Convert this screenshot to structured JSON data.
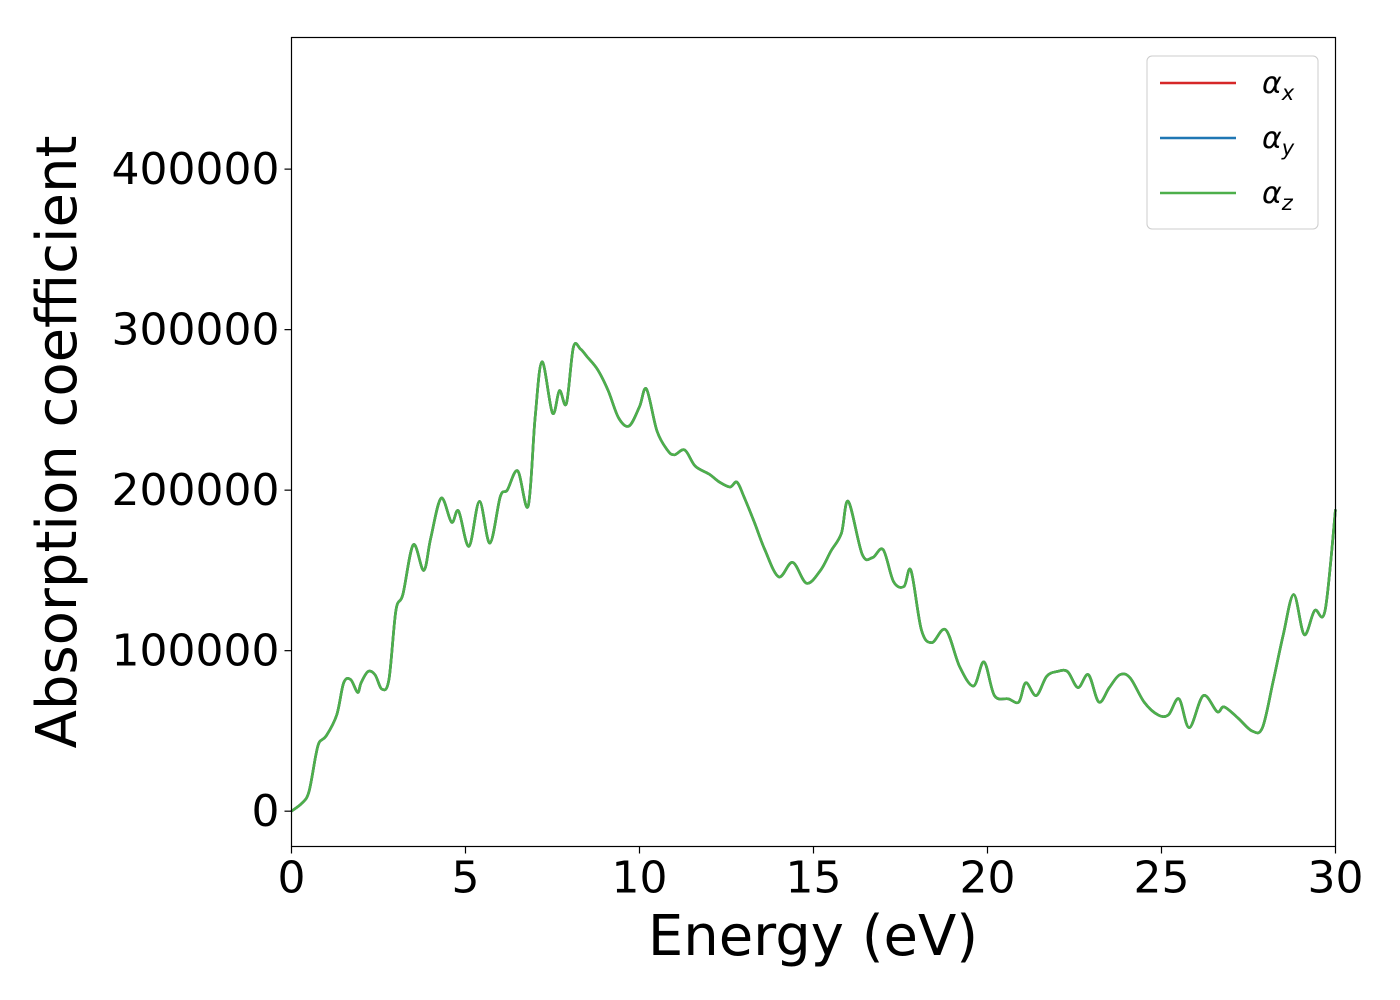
{
  "chart_data": {
    "type": "line",
    "xlabel": "Energy (eV)",
    "ylabel": "Absorption coefficient",
    "xlim": [
      0,
      30
    ],
    "ylim": [
      -22000,
      482000
    ],
    "xticks": [
      0,
      5,
      10,
      15,
      20,
      25,
      30
    ],
    "yticks": [
      0,
      100000,
      200000,
      300000,
      400000
    ],
    "grid": false,
    "legend_position": "top-right",
    "series": [
      {
        "name": "αx",
        "base": "α",
        "sub": "x",
        "color": "#d62728",
        "ref": "shared"
      },
      {
        "name": "αy",
        "base": "α",
        "sub": "y",
        "color": "#1f77b4",
        "ref": "shared"
      },
      {
        "name": "αz",
        "base": "α",
        "sub": "z",
        "color": "#4daf4a",
        "ref": "shared"
      }
    ],
    "shared": {
      "x": [
        0,
        0.3,
        0.5,
        0.7,
        0.8,
        1.0,
        1.3,
        1.5,
        1.7,
        1.9,
        2.0,
        2.2,
        2.4,
        2.6,
        2.8,
        3.0,
        3.2,
        3.5,
        3.8,
        4.0,
        4.3,
        4.6,
        4.8,
        5.1,
        5.4,
        5.7,
        6.0,
        6.2,
        6.5,
        6.8,
        7.0,
        7.2,
        7.5,
        7.7,
        7.9,
        8.1,
        8.3,
        8.5,
        8.8,
        9.1,
        9.4,
        9.7,
        10.0,
        10.2,
        10.5,
        10.8,
        11.0,
        11.3,
        11.6,
        12.0,
        12.3,
        12.6,
        12.8,
        13.0,
        13.3,
        13.6,
        14.0,
        14.4,
        14.8,
        15.2,
        15.5,
        15.8,
        16.0,
        16.4,
        16.7,
        17.0,
        17.3,
        17.6,
        17.8,
        18.1,
        18.4,
        18.8,
        19.2,
        19.6,
        19.9,
        20.2,
        20.6,
        20.9,
        21.1,
        21.4,
        21.7,
        22.0,
        22.3,
        22.6,
        22.9,
        23.2,
        23.5,
        23.8,
        24.1,
        24.5,
        24.9,
        25.2,
        25.5,
        25.8,
        26.2,
        26.6,
        26.8,
        27.2,
        27.6,
        27.9,
        28.2,
        28.5,
        28.8,
        29.1,
        29.4,
        29.7,
        30.0
      ],
      "y": [
        0,
        5000,
        12000,
        35000,
        43000,
        47000,
        60000,
        80000,
        82000,
        74000,
        80000,
        87000,
        85000,
        76000,
        82000,
        125000,
        135000,
        166000,
        150000,
        170000,
        195000,
        180000,
        187000,
        165000,
        193000,
        167000,
        196000,
        200000,
        212000,
        190000,
        245000,
        280000,
        248000,
        262000,
        254000,
        289000,
        288000,
        283000,
        275000,
        262000,
        245000,
        240000,
        252000,
        263000,
        237000,
        225000,
        222000,
        225000,
        215000,
        210000,
        205000,
        202000,
        205000,
        196000,
        180000,
        163000,
        146000,
        155000,
        142000,
        150000,
        162000,
        173000,
        193000,
        160000,
        158000,
        163000,
        143000,
        140000,
        150000,
        113000,
        105000,
        113000,
        90000,
        78000,
        93000,
        72000,
        70000,
        68000,
        80000,
        72000,
        84000,
        87000,
        87000,
        77000,
        85000,
        68000,
        77000,
        85000,
        83000,
        68000,
        60000,
        60000,
        70000,
        52000,
        72000,
        62000,
        65000,
        58000,
        50000,
        52000,
        80000,
        110000,
        135000,
        110000,
        125000,
        125000,
        188000
      ]
    }
  }
}
